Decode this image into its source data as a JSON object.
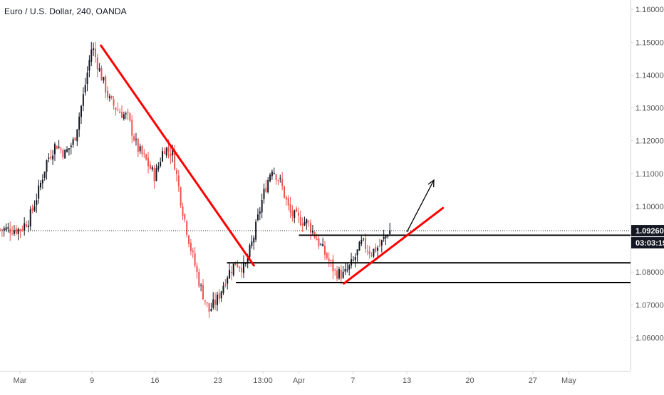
{
  "header": {
    "symbol_title": "Euro / U.S. Dollar, 240, OANDA"
  },
  "colors": {
    "bull": "#131722",
    "bear": "#ef5350",
    "trendline": "#ff0000",
    "level": "#000000",
    "axis_text": "#555555",
    "price_label_bg": "#131722",
    "price_label_text": "#ffffff"
  },
  "chart_data": {
    "type": "candlestick",
    "title": "Euro / U.S. Dollar, 240, OANDA",
    "ylim": [
      1.055,
      1.162
    ],
    "y_ticks": [
      "1.16000",
      "1.15000",
      "1.14000",
      "1.13000",
      "1.12000",
      "1.11000",
      "1.10000",
      "1.08000",
      "1.07000",
      "1.06000"
    ],
    "x_ticks": [
      "Mar",
      "9",
      "16",
      "23",
      "13:00",
      "Apr",
      "7",
      "13",
      "20",
      "27",
      "May"
    ],
    "last_price": "1.09260",
    "countdown": "03:03:19",
    "grid": false,
    "price_path": [
      {
        "date": "Mar 1",
        "price": 1.093
      },
      {
        "date": "Mar 2",
        "price": 1.096
      },
      {
        "date": "Mar 3",
        "price": 1.104
      },
      {
        "date": "Mar 4",
        "price": 1.114
      },
      {
        "date": "Mar 5",
        "price": 1.119
      },
      {
        "date": "Mar 6",
        "price": 1.116
      },
      {
        "date": "Mar 7",
        "price": 1.12
      },
      {
        "date": "Mar 8",
        "price": 1.133
      },
      {
        "date": "Mar 9",
        "price": 1.149
      },
      {
        "date": "Mar 10",
        "price": 1.14
      },
      {
        "date": "Mar 11",
        "price": 1.132
      },
      {
        "date": "Mar 12",
        "price": 1.129
      },
      {
        "date": "Mar 13",
        "price": 1.127
      },
      {
        "date": "Mar 14",
        "price": 1.118
      },
      {
        "date": "Mar 15",
        "price": 1.114
      },
      {
        "date": "Mar 16",
        "price": 1.109
      },
      {
        "date": "Mar 17",
        "price": 1.118
      },
      {
        "date": "Mar 18",
        "price": 1.116
      },
      {
        "date": "Mar 19",
        "price": 1.1
      },
      {
        "date": "Mar 20",
        "price": 1.087
      },
      {
        "date": "Mar 21",
        "price": 1.076
      },
      {
        "date": "Mar 22",
        "price": 1.068
      },
      {
        "date": "Mar 23",
        "price": 1.072
      },
      {
        "date": "Mar 24",
        "price": 1.079
      },
      {
        "date": "Mar 25",
        "price": 1.083
      },
      {
        "date": "Mar 26",
        "price": 1.081
      },
      {
        "date": "Mar 27",
        "price": 1.091
      },
      {
        "date": "Mar 28",
        "price": 1.103
      },
      {
        "date": "Mar 29",
        "price": 1.112
      },
      {
        "date": "Mar 30",
        "price": 1.107
      },
      {
        "date": "Mar 31",
        "price": 1.098
      },
      {
        "date": "Apr 1",
        "price": 1.096
      },
      {
        "date": "Apr 2",
        "price": 1.095
      },
      {
        "date": "Apr 3",
        "price": 1.09
      },
      {
        "date": "Apr 4",
        "price": 1.085
      },
      {
        "date": "Apr 5",
        "price": 1.08
      },
      {
        "date": "Apr 6",
        "price": 1.079
      },
      {
        "date": "Apr 7",
        "price": 1.083
      },
      {
        "date": "Apr 8",
        "price": 1.089
      },
      {
        "date": "Apr 9",
        "price": 1.086
      },
      {
        "date": "Apr 10",
        "price": 1.088
      },
      {
        "date": "Apr 11",
        "price": 1.0926
      }
    ],
    "annotations": {
      "trendlines": [
        {
          "label": "downtrend",
          "from": {
            "date": "Mar 10",
            "price": 1.149
          },
          "to": {
            "date": "Mar 27",
            "price": 1.082
          }
        },
        {
          "label": "uptrend",
          "from": {
            "date": "Apr 6",
            "price": 1.0765
          },
          "to": {
            "date": "Apr 17",
            "price": 1.0995
          }
        }
      ],
      "levels": [
        {
          "price": 1.0912,
          "from_date": "Apr 1",
          "to_date": "Apr 27"
        },
        {
          "price": 1.0828,
          "from_date": "Mar 24",
          "to_date": "Apr 27"
        },
        {
          "price": 1.0768,
          "from_date": "Mar 25",
          "to_date": "Apr 27"
        }
      ],
      "arrow": {
        "from": {
          "date": "Apr 13",
          "price": 1.0922
        },
        "to": {
          "date": "Apr 16",
          "price": 1.108
        }
      }
    }
  }
}
